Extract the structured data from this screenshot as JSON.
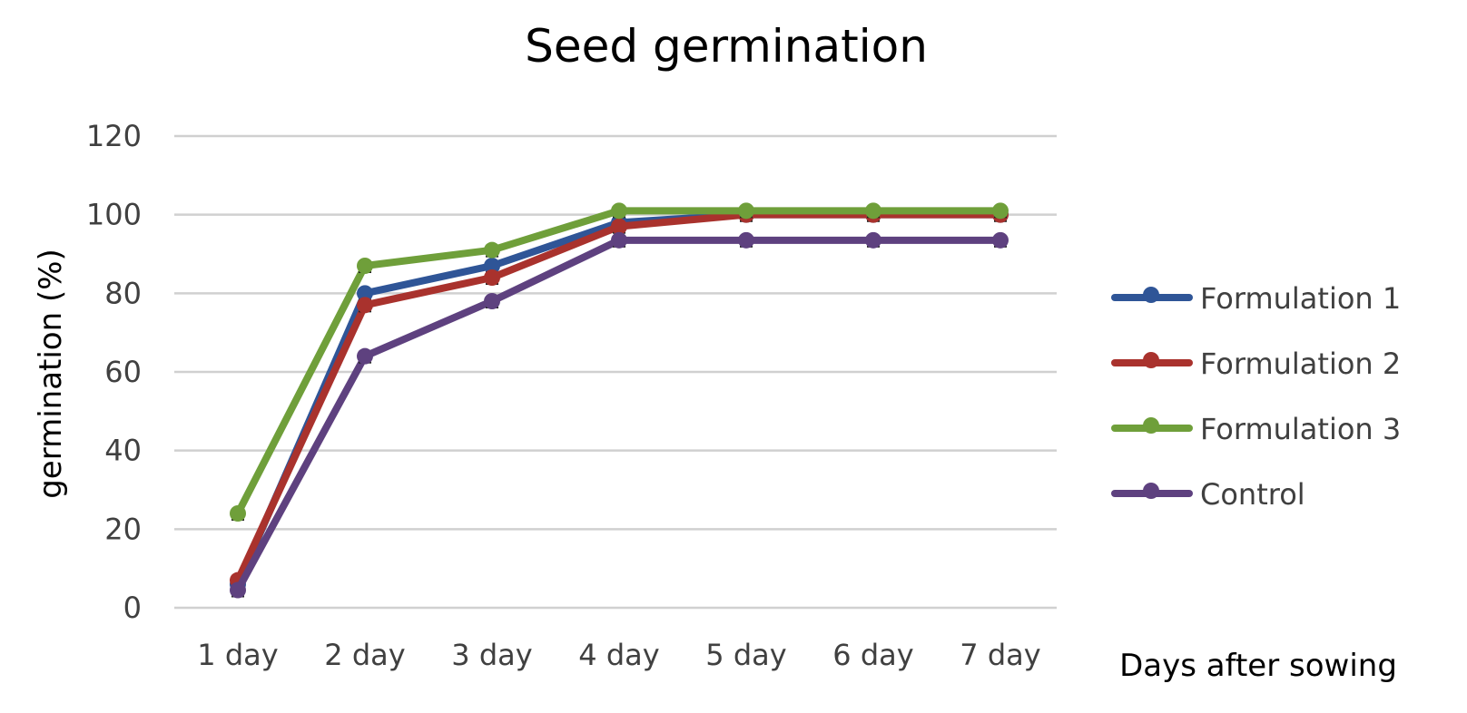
{
  "chart_data": {
    "type": "line",
    "title": "Seed germination",
    "xlabel": "Days after sowing",
    "ylabel": "germination (%)",
    "categories": [
      "1 day",
      "2 day",
      "3 day",
      "4 day",
      "5 day",
      "6 day",
      "7 day"
    ],
    "ylim": [
      0,
      120
    ],
    "yticks": [
      0,
      20,
      40,
      60,
      80,
      100,
      120
    ],
    "grid": true,
    "legend_position": "right",
    "series": [
      {
        "name": "Formulation 1",
        "color": "#2F5597",
        "values": [
          6,
          80,
          87,
          98,
          100,
          100,
          100
        ]
      },
      {
        "name": "Formulation 2",
        "color": "#A9322D",
        "values": [
          7,
          77,
          84,
          97,
          100,
          100,
          100
        ]
      },
      {
        "name": "Formulation 3",
        "color": "#6F9F3A",
        "values": [
          24,
          87,
          91,
          101,
          101,
          101,
          101
        ]
      },
      {
        "name": "Control",
        "color": "#5E417F",
        "values": [
          4.5,
          64,
          78,
          93.5,
          93.5,
          93.5,
          93.5
        ]
      }
    ]
  }
}
